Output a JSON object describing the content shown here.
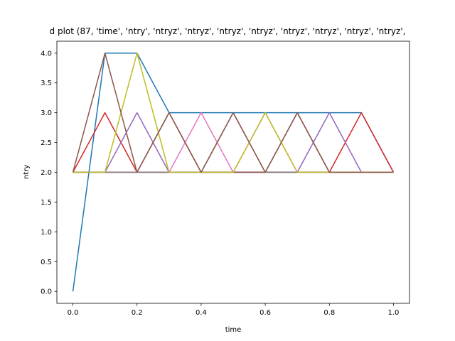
{
  "chart_data": {
    "type": "line",
    "title": "d plot (87, 'time', 'ntry', 'ntryz', 'ntryz', 'ntryz', 'ntryz', 'ntryz', 'ntryz', 'ntryz', 'ntryz',",
    "xlabel": "time",
    "ylabel": "ntry",
    "xlim": [
      -0.05,
      1.05
    ],
    "ylim": [
      -0.2,
      4.2
    ],
    "xticks": [
      0.0,
      0.2,
      0.4,
      0.6,
      0.8,
      1.0
    ],
    "xtick_labels": [
      "0.0",
      "0.2",
      "0.4",
      "0.6",
      "0.8",
      "1.0"
    ],
    "yticks": [
      0.0,
      0.5,
      1.0,
      1.5,
      2.0,
      2.5,
      3.0,
      3.5,
      4.0
    ],
    "ytick_labels": [
      "0.0",
      "0.5",
      "1.0",
      "1.5",
      "2.0",
      "2.5",
      "3.0",
      "3.5",
      "4.0"
    ],
    "grid": false,
    "legend": "none",
    "x": [
      0.0,
      0.1,
      0.2,
      0.3,
      0.4,
      0.5,
      0.6,
      0.7,
      0.8,
      0.9,
      1.0
    ],
    "series": [
      {
        "color": "#1f77b4",
        "values": [
          0,
          4,
          4,
          3,
          3,
          3,
          3,
          3,
          3,
          3,
          2
        ]
      },
      {
        "color": "#ff7f0e",
        "values": [
          2,
          2,
          2,
          2,
          2,
          2,
          2,
          2,
          2,
          2,
          2
        ]
      },
      {
        "color": "#2ca02c",
        "values": [
          2,
          2,
          2,
          2,
          2,
          2,
          2,
          2,
          2,
          2,
          2
        ]
      },
      {
        "color": "#d62728",
        "values": [
          2,
          3,
          2,
          2,
          2,
          2,
          2,
          2,
          2,
          3,
          2
        ]
      },
      {
        "color": "#9467bd",
        "values": [
          2,
          2,
          3,
          2,
          2,
          2,
          2,
          2,
          3,
          2,
          2
        ]
      },
      {
        "color": "#8c564b",
        "values": [
          2,
          2,
          2,
          3,
          2,
          2,
          2,
          3,
          2,
          2,
          2
        ]
      },
      {
        "color": "#e377c2",
        "values": [
          2,
          2,
          2,
          2,
          3,
          2,
          3,
          2,
          2,
          2,
          2
        ]
      },
      {
        "color": "#7f7f7f",
        "values": [
          2,
          2,
          2,
          2,
          2,
          3,
          2,
          2,
          2,
          2,
          2
        ]
      },
      {
        "color": "#bcbd22",
        "values": [
          2,
          2,
          4,
          2,
          2,
          2,
          3,
          2,
          2,
          2,
          2
        ]
      },
      {
        "color": "#8c564b",
        "values": [
          2,
          4,
          2,
          3,
          2,
          3,
          2,
          3,
          2,
          2,
          2
        ]
      }
    ]
  }
}
